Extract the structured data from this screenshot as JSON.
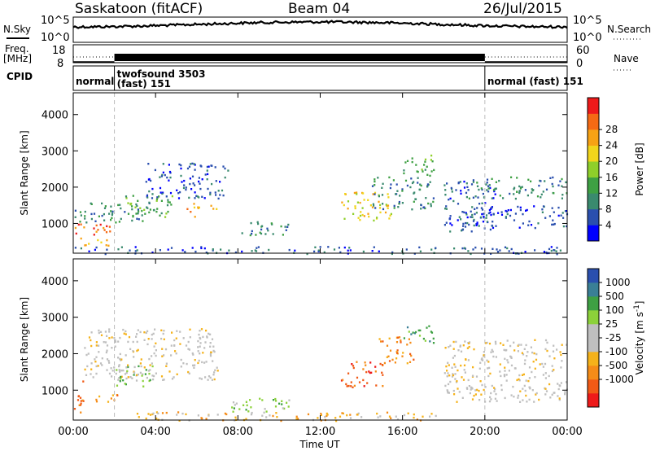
{
  "header": {
    "station": "Saskatoon (fitACF)",
    "beam": "Beam 04",
    "date": "26/Jul/2015"
  },
  "strip": {
    "nsky_label": "N.Sky",
    "nsearch_label": "N.Search",
    "freq_label_1": "Freq.",
    "freq_label_2": "[MHz]",
    "nave_label": "Nave",
    "cpid_label": "CPID",
    "noise_left_ticks": [
      "10^5",
      "10^0"
    ],
    "noise_right_ticks": [
      "10^5",
      "10^0"
    ],
    "freq_ticks": [
      "18",
      "8"
    ],
    "nave_ticks": [
      "60",
      "0"
    ],
    "cpid_segments": [
      {
        "name": "normal",
        "sub": "",
        "start": 0,
        "end": 2
      },
      {
        "name": "twofsound 3503",
        "sub": "(fast) 151",
        "start": 2,
        "end": 20
      },
      {
        "name": "normal (fast) 151",
        "sub": "",
        "start": 20,
        "end": 24
      }
    ]
  },
  "colors": {
    "power": [
      "#0000ff",
      "#2a4fae",
      "#3a8a6e",
      "#3ea043",
      "#8fcf2a",
      "#f1d51b",
      "#f7a214",
      "#f56a14",
      "#ee1a1a"
    ],
    "velocity": [
      "#ee1a1a",
      "#f15a16",
      "#f58c18",
      "#f5b21a",
      "#bfbfbf",
      "#bfbfbf",
      "#8cd13a",
      "#3ea043",
      "#3a7f96",
      "#2a4fae"
    ]
  },
  "chart_data": [
    {
      "type": "heatmap",
      "quantity": "Power",
      "ylabel": "Slant Range [km]",
      "xlabel": "Time UT",
      "xlim": [
        0,
        24
      ],
      "ylim": [
        180,
        4600
      ],
      "x_ticks": [
        "00:00",
        "04:00",
        "08:00",
        "12:00",
        "16:00",
        "20:00",
        "00:00"
      ],
      "y_ticks": [
        1000,
        2000,
        3000,
        4000
      ],
      "colorbar_label": "Power [dB]",
      "colorbar_ticks": [
        "4",
        "8",
        "12",
        "16",
        "20",
        "24",
        "28"
      ],
      "mode_change_lines": [
        2,
        20
      ],
      "regions": [
        {
          "t0": 0.0,
          "t1": 2.2,
          "r0": 700,
          "r1": 1000,
          "level": 7
        },
        {
          "t0": 0.3,
          "t1": 1.8,
          "r0": 400,
          "r1": 650,
          "level": 6
        },
        {
          "t0": 0.0,
          "t1": 3.8,
          "r0": 1050,
          "r1": 1600,
          "level": 2
        },
        {
          "t0": 2.5,
          "t1": 4.8,
          "r0": 1100,
          "r1": 1800,
          "level": 3
        },
        {
          "t0": 3.5,
          "t1": 7.5,
          "r0": 1700,
          "r1": 2700,
          "level": 1
        },
        {
          "t0": 5.5,
          "t1": 6.3,
          "r0": 1200,
          "r1": 1600,
          "level": 6
        },
        {
          "t0": 6.5,
          "t1": 7.0,
          "r0": 1300,
          "r1": 1550,
          "level": 6
        },
        {
          "t0": 8.0,
          "t1": 10.5,
          "r0": 700,
          "r1": 1100,
          "level": 2
        },
        {
          "t0": 13.0,
          "t1": 15.5,
          "r0": 1100,
          "r1": 1900,
          "level": 5
        },
        {
          "t0": 14.5,
          "t1": 17.5,
          "r0": 1400,
          "r1": 2300,
          "level": 2
        },
        {
          "t0": 16.0,
          "t1": 17.5,
          "r0": 2300,
          "r1": 2900,
          "level": 3
        },
        {
          "t0": 18.0,
          "t1": 20.5,
          "r0": 800,
          "r1": 2200,
          "level": 1
        },
        {
          "t0": 19.0,
          "t1": 24.0,
          "r0": 1700,
          "r1": 2300,
          "level": 2
        },
        {
          "t0": 19.0,
          "t1": 24.0,
          "r0": 900,
          "r1": 1500,
          "level": 1
        },
        {
          "t0": 0.0,
          "t1": 24.0,
          "r0": 180,
          "r1": 380,
          "level": 1
        }
      ]
    },
    {
      "type": "heatmap",
      "quantity": "Velocity",
      "ylabel": "Slant Range [km]",
      "xlabel": "Time UT",
      "xlim": [
        0,
        24
      ],
      "ylim": [
        180,
        4600
      ],
      "x_ticks": [
        "00:00",
        "04:00",
        "08:00",
        "12:00",
        "16:00",
        "20:00",
        "00:00"
      ],
      "y_ticks": [
        1000,
        2000,
        3000,
        4000
      ],
      "colorbar_label": "Velocity [m s^-1]",
      "colorbar_ticks": [
        "1000",
        "500",
        "100",
        "25",
        "-25",
        "-100",
        "-500",
        "-1000"
      ],
      "mode_change_lines": [
        2,
        20
      ],
      "regions": [
        {
          "t0": 0.0,
          "t1": 2.2,
          "r0": 700,
          "r1": 900,
          "level": 2
        },
        {
          "t0": 0.0,
          "t1": 0.5,
          "r0": 400,
          "r1": 1300,
          "level": 1
        },
        {
          "t0": 0.5,
          "t1": 7.0,
          "r0": 1300,
          "r1": 2700,
          "level": 4
        },
        {
          "t0": 2.0,
          "t1": 4.0,
          "r0": 1100,
          "r1": 1700,
          "level": 6
        },
        {
          "t0": 13.0,
          "t1": 15.0,
          "r0": 1100,
          "r1": 1800,
          "level": 1
        },
        {
          "t0": 14.8,
          "t1": 16.5,
          "r0": 1700,
          "r1": 2500,
          "level": 2
        },
        {
          "t0": 16.0,
          "t1": 17.5,
          "r0": 2300,
          "r1": 2800,
          "level": 7
        },
        {
          "t0": 18.0,
          "t1": 24.0,
          "r0": 700,
          "r1": 2400,
          "level": 4
        },
        {
          "t0": 7.5,
          "t1": 10.5,
          "r0": 400,
          "r1": 800,
          "level": 6
        },
        {
          "t0": 3.0,
          "t1": 18.0,
          "r0": 180,
          "r1": 420,
          "level": 3
        }
      ]
    }
  ]
}
